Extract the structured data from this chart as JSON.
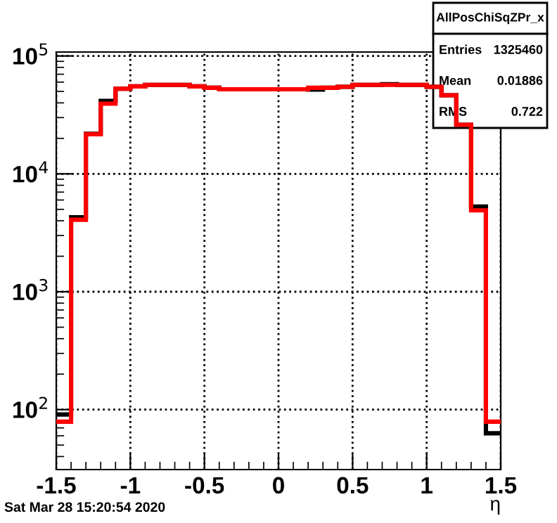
{
  "chart_data": {
    "type": "histogram",
    "xlabel": "η",
    "bins": [
      -1.5,
      -1.4,
      -1.3,
      -1.2,
      -1.1,
      -1.0,
      -0.9,
      -0.8,
      -0.7,
      -0.6,
      -0.5,
      -0.4,
      -0.3,
      -0.2,
      -0.1,
      0.0,
      0.1,
      0.2,
      0.3,
      0.4,
      0.5,
      0.6,
      0.7,
      0.8,
      0.9,
      1.0,
      1.1,
      1.2,
      1.3,
      1.4,
      1.5
    ],
    "series": [
      {
        "color": "#000000",
        "values": [
          91,
          4280,
          21900,
          41600,
          52700,
          55200,
          56800,
          56800,
          56800,
          55200,
          53700,
          52200,
          52200,
          52200,
          52200,
          52200,
          52200,
          51800,
          53700,
          54700,
          56800,
          56800,
          57500,
          56800,
          56800,
          54700,
          46400,
          26100,
          5280,
          63
        ]
      },
      {
        "color": "#ff0000",
        "values": [
          79,
          4080,
          21700,
          39400,
          52700,
          55200,
          56800,
          56800,
          56800,
          55200,
          53700,
          52200,
          52200,
          52200,
          52200,
          52200,
          52200,
          53700,
          53700,
          54700,
          56800,
          56800,
          56800,
          56800,
          56800,
          54700,
          46400,
          26100,
          4900,
          79
        ]
      }
    ],
    "log": "y",
    "xlim": [
      -1.5,
      1.5
    ],
    "ylim": [
      31,
      108000
    ],
    "xticks": [
      -1.5,
      -1,
      -0.5,
      0,
      0.5,
      1,
      1.5
    ],
    "yticks": [
      {
        "value": 100,
        "label": "10$^{2}$"
      },
      {
        "value": 1000,
        "label": "10$^{3}$"
      },
      {
        "value": 10000,
        "label": "10$^{4}$"
      },
      {
        "value": 100000,
        "label": "10$^{5}$"
      }
    ],
    "grid": true,
    "legend": false,
    "annotations": [
      "AllPosChiSqZPr_x",
      "Entries",
      "1325460",
      "Mean",
      "0.01886",
      "RMS",
      "0.722",
      "Sat Mar 28 15:20:54 2020"
    ]
  }
}
